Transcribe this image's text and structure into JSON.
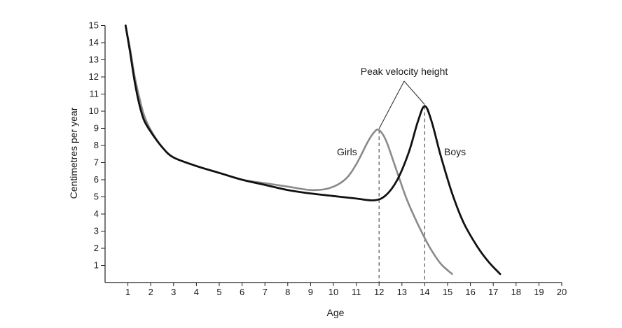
{
  "chart_data": {
    "type": "line",
    "title": "",
    "xlabel": "Age",
    "ylabel": "Centimetres per year",
    "xlim": [
      0,
      20
    ],
    "ylim": [
      0,
      15
    ],
    "x_ticks": [
      1,
      2,
      3,
      4,
      5,
      6,
      7,
      8,
      9,
      10,
      11,
      12,
      13,
      14,
      15,
      16,
      17,
      18,
      19,
      20
    ],
    "y_ticks": [
      1,
      2,
      3,
      4,
      5,
      6,
      7,
      8,
      9,
      10,
      11,
      12,
      13,
      14,
      15
    ],
    "grid": false,
    "series": [
      {
        "name": "Girls",
        "color": "#8a8a8a",
        "points": [
          [
            0.9,
            15.0
          ],
          [
            1.1,
            13.6
          ],
          [
            1.3,
            12.0
          ],
          [
            1.5,
            10.8
          ],
          [
            1.7,
            9.8
          ],
          [
            2.0,
            8.9
          ],
          [
            2.5,
            7.9
          ],
          [
            3.0,
            7.3
          ],
          [
            4.0,
            6.8
          ],
          [
            5.0,
            6.4
          ],
          [
            6.0,
            6.0
          ],
          [
            7.0,
            5.8
          ],
          [
            8.0,
            5.6
          ],
          [
            9.0,
            5.4
          ],
          [
            9.8,
            5.5
          ],
          [
            10.5,
            6.0
          ],
          [
            11.0,
            6.9
          ],
          [
            11.5,
            8.2
          ],
          [
            11.8,
            8.8
          ],
          [
            12.0,
            8.9
          ],
          [
            12.3,
            8.3
          ],
          [
            12.7,
            6.8
          ],
          [
            13.2,
            4.9
          ],
          [
            13.7,
            3.4
          ],
          [
            14.2,
            2.1
          ],
          [
            14.7,
            1.1
          ],
          [
            15.2,
            0.5
          ]
        ]
      },
      {
        "name": "Boys",
        "color": "#111111",
        "points": [
          [
            0.9,
            15.0
          ],
          [
            1.1,
            13.4
          ],
          [
            1.3,
            11.7
          ],
          [
            1.5,
            10.4
          ],
          [
            1.7,
            9.5
          ],
          [
            2.0,
            8.8
          ],
          [
            2.5,
            7.9
          ],
          [
            3.0,
            7.3
          ],
          [
            4.0,
            6.8
          ],
          [
            5.0,
            6.4
          ],
          [
            6.0,
            6.0
          ],
          [
            7.0,
            5.7
          ],
          [
            8.0,
            5.4
          ],
          [
            9.0,
            5.2
          ],
          [
            10.0,
            5.05
          ],
          [
            11.0,
            4.9
          ],
          [
            11.8,
            4.8
          ],
          [
            12.3,
            5.1
          ],
          [
            12.8,
            6.0
          ],
          [
            13.3,
            7.6
          ],
          [
            13.7,
            9.4
          ],
          [
            14.0,
            10.3
          ],
          [
            14.3,
            9.4
          ],
          [
            14.7,
            7.4
          ],
          [
            15.2,
            5.2
          ],
          [
            15.7,
            3.5
          ],
          [
            16.3,
            2.1
          ],
          [
            16.8,
            1.2
          ],
          [
            17.3,
            0.5
          ]
        ]
      }
    ],
    "peak_markers": [
      {
        "x": 12,
        "y": 8.9,
        "series": "Girls"
      },
      {
        "x": 14,
        "y": 10.3,
        "series": "Boys"
      }
    ],
    "annotations": {
      "girls_label": "Girls",
      "boys_label": "Boys",
      "peak_label": "Peak velocity height"
    }
  }
}
